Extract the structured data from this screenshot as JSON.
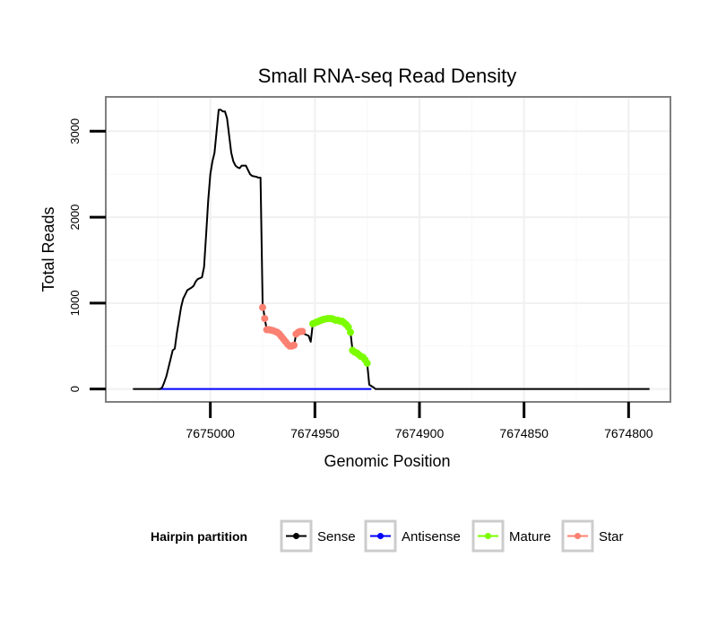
{
  "chart_data": {
    "type": "line",
    "title": "Small RNA-seq Read Density",
    "xlabel": "Genomic Position",
    "ylabel": "Total Reads",
    "xlim": [
      7675050,
      7674780
    ],
    "ylim": [
      -150,
      3400
    ],
    "x_reversed": true,
    "x_ticks": [
      7675000,
      7674950,
      7674900,
      7674850,
      7674800
    ],
    "x_tick_labels": [
      "7675000",
      "7674950",
      "7674900",
      "7674850",
      "7674800"
    ],
    "y_ticks": [
      0,
      1000,
      2000,
      3000
    ],
    "y_tick_labels": [
      "0",
      "1000",
      "2000",
      "3000"
    ],
    "grid": true,
    "legend": {
      "title": "Hairpin partition",
      "placement": "bottom",
      "entries": [
        {
          "label": "Sense",
          "color": "#000000"
        },
        {
          "label": "Antisense",
          "color": "#0000ff"
        },
        {
          "label": "Mature",
          "color": "#7cfc00"
        },
        {
          "label": "Star",
          "color": "#fa8072"
        }
      ]
    },
    "series": [
      {
        "name": "Sense",
        "color": "#000000",
        "style": "line",
        "points": [
          [
            7675037,
            0
          ],
          [
            7675024,
            0
          ],
          [
            7675023,
            20
          ],
          [
            7675022,
            80
          ],
          [
            7675021,
            150
          ],
          [
            7675020,
            250
          ],
          [
            7675019,
            350
          ],
          [
            7675018,
            450
          ],
          [
            7675017,
            470
          ],
          [
            7675016,
            650
          ],
          [
            7675015,
            800
          ],
          [
            7675014,
            950
          ],
          [
            7675013,
            1050
          ],
          [
            7675012,
            1100
          ],
          [
            7675011,
            1150
          ],
          [
            7675009,
            1180
          ],
          [
            7675008,
            1200
          ],
          [
            7675007,
            1250
          ],
          [
            7675006,
            1280
          ],
          [
            7675004,
            1300
          ],
          [
            7675003,
            1420
          ],
          [
            7675002,
            1800
          ],
          [
            7675001,
            2200
          ],
          [
            7675000,
            2500
          ],
          [
            7674999,
            2650
          ],
          [
            7674998,
            2750
          ],
          [
            7674997,
            3000
          ],
          [
            7674996,
            3250
          ],
          [
            7674995,
            3250
          ],
          [
            7674994,
            3230
          ],
          [
            7674993,
            3230
          ],
          [
            7674992,
            3150
          ],
          [
            7674991,
            2950
          ],
          [
            7674990,
            2750
          ],
          [
            7674989,
            2650
          ],
          [
            7674988,
            2600
          ],
          [
            7674987,
            2580
          ],
          [
            7674986,
            2570
          ],
          [
            7674985,
            2600
          ],
          [
            7674983,
            2600
          ],
          [
            7674982,
            2550
          ],
          [
            7674981,
            2500
          ],
          [
            7674980,
            2480
          ],
          [
            7674978,
            2470
          ],
          [
            7674977,
            2460
          ],
          [
            7674976,
            2460
          ],
          [
            7674975,
            1000
          ],
          [
            7674974,
            820
          ],
          [
            7674973,
            690
          ],
          [
            7674970,
            680
          ],
          [
            7674968,
            660
          ],
          [
            7674966,
            600
          ],
          [
            7674964,
            550
          ],
          [
            7674962,
            500
          ],
          [
            7674960,
            500
          ],
          [
            7674959,
            640
          ],
          [
            7674957,
            670
          ],
          [
            7674956,
            670
          ],
          [
            7674955,
            640
          ],
          [
            7674953,
            620
          ],
          [
            7674952,
            550
          ],
          [
            7674951,
            760
          ],
          [
            7674948,
            790
          ],
          [
            7674946,
            810
          ],
          [
            7674944,
            820
          ],
          [
            7674942,
            820
          ],
          [
            7674939,
            800
          ],
          [
            7674937,
            790
          ],
          [
            7674935,
            750
          ],
          [
            7674934,
            720
          ],
          [
            7674933,
            660
          ],
          [
            7674932,
            450
          ],
          [
            7674931,
            430
          ],
          [
            7674929,
            400
          ],
          [
            7674927,
            370
          ],
          [
            7674926,
            340
          ],
          [
            7674925,
            300
          ],
          [
            7674924,
            50
          ],
          [
            7674922,
            20
          ],
          [
            7674921,
            0
          ],
          [
            7674790,
            0
          ]
        ]
      },
      {
        "name": "Antisense",
        "color": "#0000ff",
        "style": "line",
        "points": [
          [
            7675025,
            0
          ],
          [
            7674923,
            0
          ]
        ]
      },
      {
        "name": "Mature",
        "color": "#7cfc00",
        "style": "points",
        "points": [
          [
            7674951,
            760
          ],
          [
            7674950,
            770
          ],
          [
            7674949,
            780
          ],
          [
            7674948,
            790
          ],
          [
            7674947,
            800
          ],
          [
            7674946,
            810
          ],
          [
            7674945,
            815
          ],
          [
            7674944,
            820
          ],
          [
            7674943,
            820
          ],
          [
            7674942,
            820
          ],
          [
            7674941,
            810
          ],
          [
            7674940,
            800
          ],
          [
            7674939,
            800
          ],
          [
            7674938,
            790
          ],
          [
            7674937,
            790
          ],
          [
            7674936,
            770
          ],
          [
            7674935,
            750
          ],
          [
            7674934,
            720
          ],
          [
            7674933,
            660
          ],
          [
            7674932,
            450
          ],
          [
            7674931,
            430
          ],
          [
            7674930,
            420
          ],
          [
            7674929,
            400
          ],
          [
            7674928,
            380
          ],
          [
            7674927,
            370
          ],
          [
            7674926,
            340
          ],
          [
            7674925,
            300
          ]
        ]
      },
      {
        "name": "Star",
        "color": "#fa8072",
        "style": "points",
        "points": [
          [
            7674975,
            950
          ],
          [
            7674974,
            820
          ],
          [
            7674973,
            690
          ],
          [
            7674972,
            690
          ],
          [
            7674971,
            685
          ],
          [
            7674970,
            680
          ],
          [
            7674969,
            670
          ],
          [
            7674968,
            660
          ],
          [
            7674967,
            640
          ],
          [
            7674966,
            610
          ],
          [
            7674965,
            580
          ],
          [
            7674964,
            550
          ],
          [
            7674963,
            520
          ],
          [
            7674962,
            500
          ],
          [
            7674961,
            500
          ],
          [
            7674960,
            510
          ],
          [
            7674959,
            640
          ],
          [
            7674958,
            660
          ],
          [
            7674957,
            670
          ],
          [
            7674956,
            670
          ]
        ]
      }
    ]
  }
}
